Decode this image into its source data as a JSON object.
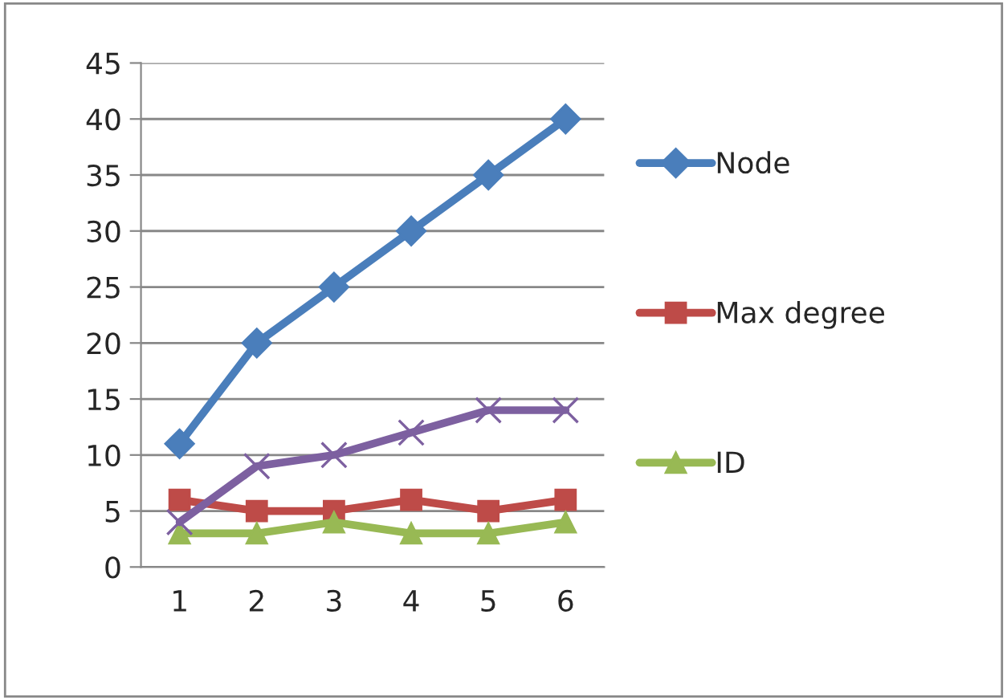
{
  "chart_data": {
    "type": "line",
    "categories": [
      "1",
      "2",
      "3",
      "4",
      "5",
      "6"
    ],
    "series": [
      {
        "name": "Node",
        "color": "#4a7ebb",
        "marker": "diamond",
        "values": [
          11,
          20,
          25,
          30,
          35,
          40
        ]
      },
      {
        "name": "Max degree",
        "color": "#be4b48",
        "marker": "square",
        "values": [
          6,
          5,
          5,
          6,
          5,
          6
        ]
      },
      {
        "name": "ID",
        "color": "#98b954",
        "marker": "triangle",
        "values": [
          3,
          3,
          4,
          3,
          3,
          4
        ]
      },
      {
        "color": "#7d60a0",
        "marker": "cross",
        "values": [
          4,
          9,
          10,
          12,
          14,
          14
        ]
      }
    ],
    "ylim": [
      0,
      45
    ],
    "yticks": [
      0,
      5,
      10,
      15,
      20,
      25,
      30,
      35,
      40,
      45
    ],
    "grid": "y",
    "legend": "right"
  }
}
